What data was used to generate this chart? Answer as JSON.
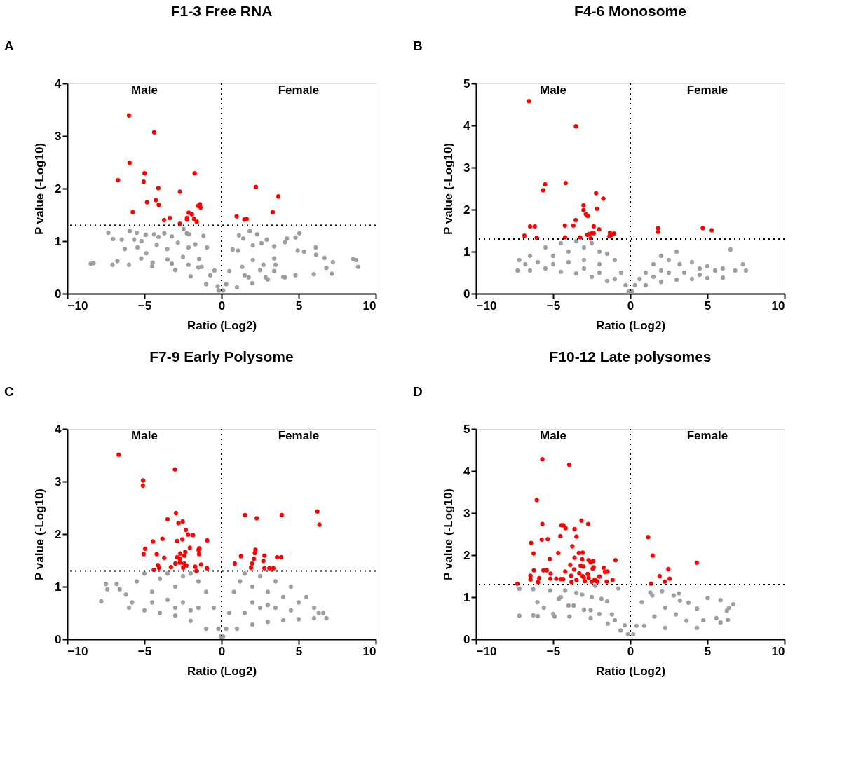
{
  "chart_data": [
    {
      "type": "scatter",
      "title": "F1-3 Free RNA",
      "xlabel": "Ratio (Log2)",
      "ylabel": "P value (-Log10)",
      "annotations": [
        "A",
        "Male",
        "Female"
      ],
      "xlim": [
        -10,
        10
      ],
      "xticks": [
        -10,
        -5,
        0,
        5,
        10
      ],
      "ylim": [
        0,
        4
      ],
      "yticks": [
        0,
        1,
        2,
        3,
        4
      ],
      "grid": false,
      "marker": "circle",
      "ref_lines": [
        {
          "axis": "x",
          "value": 0,
          "color": "#000000",
          "line_style": "dotted"
        },
        {
          "axis": "y",
          "value": 1.3,
          "color": "#000000",
          "line_style": "dotted"
        }
      ],
      "series": [
        {
          "color": "#9d9da3",
          "x": [
            -8.48,
            -8.3,
            -7.34,
            -7.07,
            -7.03,
            -6.75,
            -6.47,
            -6.27,
            -5.95,
            -5.67,
            -5.5,
            -5.45,
            -5.19,
            -4.91,
            -5.21,
            -4.88,
            -4.37,
            -4.09,
            -3.71,
            -3.22,
            -2.46,
            -2.25,
            -2.11,
            -1.7,
            -1.17,
            -0.94,
            -0.46,
            -4.2,
            -3.52,
            -2.83,
            -2.14,
            -1.45,
            -4.47,
            -3.22,
            -2.14,
            -1.29,
            -0.73,
            -0.25,
            -0.18,
            -6.0,
            -4.5,
            -3,
            -2,
            -1,
            -2.5,
            -1.5,
            -3.5,
            0.1,
            0.3,
            0.51,
            0.72,
            1.07,
            1.13,
            1.41,
            1.83,
            2.31,
            2.93,
            2.59,
            3.41,
            4.11,
            4.24,
            4.8,
            5.05,
            4.94,
            5.35,
            6.11,
            6.13,
            6.67,
            7.22,
            6.8,
            7.15,
            8.53,
            8.72,
            8.85,
            5.98,
            4.8,
            3.41,
            2.72,
            2.03,
            1.34,
            1.76,
            2.86,
            4.11,
            2.03,
            3.41,
            1,
            2,
            3,
            4,
            1.5,
            2.5,
            3.5
          ],
          "values": [
            0.57,
            0.58,
            1.16,
            0.55,
            1.04,
            0.62,
            1.03,
            0.85,
            1.19,
            1.03,
            1.16,
            0.88,
            1.0,
            1.12,
            0.67,
            0.77,
            1.13,
            1.08,
            1.15,
            1.09,
            1.23,
            1.15,
            1.13,
            0.94,
            1.1,
            0.88,
            0.44,
            0.93,
            0.85,
            0.97,
            0.88,
            0.66,
            0.59,
            0.57,
            0.55,
            0.51,
            0.35,
            0.14,
            0.06,
            0.55,
            0.52,
            0.45,
            0.33,
            0.18,
            0.7,
            0.5,
            0.65,
            0.06,
            0.18,
            0.43,
            0.84,
            0.82,
            1.11,
            1.05,
            1.19,
            1.13,
            1.03,
            0.96,
            0.9,
            0.98,
            1.05,
            1.07,
            1.15,
            0.82,
            0.8,
            0.88,
            0.74,
            0.68,
            0.6,
            0.49,
            0.38,
            0.66,
            0.64,
            0.51,
            0.37,
            0.35,
            0.43,
            0.55,
            0.64,
            0.51,
            0.31,
            0.31,
            0.31,
            0.92,
            0.67,
            0.12,
            0.2,
            0.27,
            0.32,
            0.35,
            0.45,
            0.55
          ]
        },
        {
          "color": "#ff0000",
          "x": [
            -6.0,
            -4.37,
            -5.96,
            -4.99,
            -6.72,
            -5.05,
            -1.74,
            -4.1,
            -2.7,
            -4.83,
            -4.26,
            -4.07,
            -5.76,
            -1.52,
            -1.4,
            -1.36,
            -2.13,
            -1.92,
            -3.35,
            -3.73,
            -2.24,
            -2.24,
            -1.78,
            -1.61,
            -2.7,
            2.23,
            3.68,
            3.32,
            0.98,
            1.48,
            1.63
          ],
          "values": [
            3.39,
            3.07,
            2.49,
            2.29,
            2.16,
            2.13,
            2.29,
            2.01,
            1.94,
            1.74,
            1.78,
            1.69,
            1.55,
            1.67,
            1.7,
            1.64,
            1.54,
            1.51,
            1.44,
            1.4,
            1.44,
            1.41,
            1.42,
            1.37,
            1.33,
            2.03,
            1.85,
            1.55,
            1.47,
            1.41,
            1.42
          ]
        }
      ]
    },
    {
      "type": "scatter",
      "title": "F4-6 Monosome",
      "xlabel": "Ratio (Log2)",
      "ylabel": "P value (-Log10)",
      "annotations": [
        "B",
        "Male",
        "Female"
      ],
      "xlim": [
        -10,
        10
      ],
      "xticks": [
        -10,
        -5,
        0,
        5,
        10
      ],
      "ylim": [
        0,
        5
      ],
      "yticks": [
        0,
        1,
        2,
        3,
        4,
        5
      ],
      "grid": false,
      "marker": "circle",
      "ref_lines": [
        {
          "axis": "x",
          "value": 0,
          "color": "#000000",
          "line_style": "dotted"
        },
        {
          "axis": "y",
          "value": 1.3,
          "color": "#000000",
          "line_style": "dotted"
        }
      ],
      "series": [
        {
          "color": "#9d9da3",
          "x": [
            -7.3,
            -7.2,
            -6.8,
            -6.5,
            -6,
            -5.5,
            -5,
            -4.5,
            -4,
            -3.5,
            -3,
            -2.5,
            -2,
            -1.5,
            -1,
            -0.6,
            -0.3,
            -0.1,
            -6.5,
            -5.5,
            -4.5,
            -3.5,
            -2.5,
            -1.5,
            -5,
            -4,
            -3,
            -2,
            -3,
            -2,
            -1,
            0.1,
            0.3,
            0.6,
            1,
            1.5,
            2,
            2.5,
            3,
            3.2,
            4,
            4.5,
            5,
            5.5,
            6,
            6.5,
            6.8,
            7.3,
            7.5,
            1,
            2,
            3,
            4,
            5,
            6,
            1.5,
            2.5,
            3.5,
            4.5,
            2
          ],
          "values": [
            0.55,
            0.8,
            0.7,
            0.9,
            0.75,
            1.1,
            0.9,
            1.2,
            1.0,
            1.25,
            1.1,
            1.2,
            1.0,
            0.95,
            0.8,
            0.5,
            0.2,
            0.05,
            0.55,
            0.6,
            0.52,
            0.48,
            0.4,
            0.3,
            0.7,
            0.75,
            0.8,
            0.7,
            0.6,
            0.5,
            0.35,
            0.05,
            0.2,
            0.35,
            0.5,
            0.7,
            0.9,
            0.8,
            1.0,
            0.7,
            0.75,
            0.6,
            0.65,
            0.55,
            0.6,
            1.05,
            0.55,
            0.7,
            0.55,
            0.2,
            0.28,
            0.33,
            0.35,
            0.37,
            0.38,
            0.4,
            0.5,
            0.5,
            0.45,
            0.55
          ]
        },
        {
          "color": "#ff0000",
          "x": [
            -6.57,
            -3.52,
            -5.52,
            -5.65,
            -4.19,
            -2.22,
            -1.75,
            -3.03,
            -3.03,
            -2.16,
            -2.88,
            -2.76,
            -3.54,
            -6.5,
            -6.19,
            -4.24,
            -3.69,
            -2.37,
            -2.02,
            -6.87,
            -6.06,
            -4.23,
            -3.25,
            -2.78,
            -2.67,
            -2.49,
            -2.37,
            -2.56,
            -1.32,
            -1.35,
            -1.25,
            -1.06,
            1.8,
            1.8,
            4.7,
            5.28
          ],
          "values": [
            4.58,
            3.98,
            2.6,
            2.46,
            2.63,
            2.39,
            2.26,
            2.1,
            1.99,
            2.02,
            1.89,
            1.85,
            1.75,
            1.6,
            1.6,
            1.62,
            1.62,
            1.6,
            1.53,
            1.38,
            1.33,
            1.34,
            1.34,
            1.4,
            1.42,
            1.44,
            1.44,
            1.32,
            1.45,
            1.37,
            1.39,
            1.43,
            1.56,
            1.47,
            1.56,
            1.51
          ]
        }
      ]
    },
    {
      "type": "scatter",
      "title": "F7-9 Early Polysome",
      "xlabel": "Ratio (Log2)",
      "ylabel": "P value (-Log10)",
      "annotations": [
        "C",
        "Male",
        "Female"
      ],
      "xlim": [
        -10,
        10
      ],
      "xticks": [
        -10,
        -5,
        0,
        5,
        10
      ],
      "ylim": [
        0,
        4
      ],
      "yticks": [
        0,
        1,
        2,
        3,
        4
      ],
      "grid": false,
      "marker": "circle",
      "ref_lines": [
        {
          "axis": "x",
          "value": 0,
          "color": "#000000",
          "line_style": "dotted"
        },
        {
          "axis": "y",
          "value": 1.3,
          "color": "#000000",
          "line_style": "dotted"
        }
      ],
      "series": [
        {
          "color": "#9d9da3",
          "x": [
            -7.8,
            -7.5,
            -7.4,
            -6.8,
            -6.6,
            -6.2,
            -6.0,
            -5.8,
            -5.5,
            -5,
            -4.5,
            -4,
            -3.5,
            -3,
            -2.5,
            -2,
            -1.5,
            -1,
            -0.5,
            -0.2,
            -0.05,
            -5,
            -4,
            -3,
            -2,
            -1,
            -4.5,
            -3.5,
            -2.5,
            -1.5,
            -3,
            -2,
            0.1,
            0.3,
            0.5,
            0.8,
            1.2,
            1.5,
            2,
            2.5,
            3,
            3.5,
            4,
            4.5,
            5,
            5.5,
            6,
            6.3,
            6.6,
            6.8,
            1,
            2,
            3,
            4,
            5,
            6,
            1.5,
            2.5,
            3.5,
            4.5,
            2,
            3
          ],
          "values": [
            0.72,
            1.05,
            0.95,
            1.05,
            0.95,
            0.85,
            0.6,
            0.7,
            1.1,
            1.25,
            0.9,
            1.15,
            1.25,
            1.0,
            1.2,
            1.25,
            1.1,
            0.9,
            0.6,
            0.2,
            0.05,
            0.55,
            0.5,
            0.45,
            0.35,
            0.2,
            0.7,
            0.75,
            0.7,
            0.6,
            0.6,
            0.55,
            0.05,
            0.2,
            0.5,
            0.9,
            1.1,
            1.25,
            1.0,
            1.2,
            0.9,
            1.1,
            0.8,
            1.0,
            0.7,
            0.8,
            0.6,
            0.5,
            0.5,
            0.4,
            0.2,
            0.28,
            0.33,
            0.36,
            0.38,
            0.4,
            0.5,
            0.6,
            0.6,
            0.55,
            0.7,
            0.65
          ]
        },
        {
          "color": "#ff0000",
          "x": [
            -6.67,
            -3.02,
            -5.09,
            -5.1,
            -2.96,
            -3.5,
            -2.79,
            -2.52,
            -2.32,
            -2.17,
            -1.85,
            -4.45,
            -3.83,
            -2.88,
            -2.54,
            -0.93,
            -4.95,
            -5.05,
            -4.2,
            -3.72,
            -2.05,
            -1.49,
            -1.44,
            -1.46,
            -2.68,
            -2.35,
            -2.41,
            -2.88,
            -2.71,
            -2.7,
            -2.99,
            -4.12,
            -4.05,
            -4.39,
            -3.28,
            -2.42,
            -2.28,
            -2.49,
            -1.71,
            -1.63,
            -1.33,
            -0.94,
            1.52,
            2.28,
            3.9,
            6.21,
            6.35,
            2.2,
            2.16,
            1.26,
            2.1,
            2.78,
            3.6,
            3.86,
            0.86,
            1.98,
            2.71,
            1.91,
            2.78,
            3.1,
            3.36
          ],
          "values": [
            3.51,
            3.23,
            3.02,
            2.92,
            2.4,
            2.28,
            2.21,
            2.24,
            2.08,
            1.99,
            1.98,
            1.86,
            1.91,
            1.87,
            1.9,
            1.88,
            1.72,
            1.62,
            1.62,
            1.55,
            1.74,
            1.7,
            1.73,
            1.62,
            1.63,
            1.66,
            1.59,
            1.56,
            1.53,
            1.46,
            1.44,
            1.41,
            1.36,
            1.32,
            1.37,
            1.44,
            1.4,
            1.36,
            1.38,
            1.3,
            1.42,
            1.35,
            2.36,
            2.3,
            2.36,
            2.43,
            2.18,
            1.7,
            1.64,
            1.58,
            1.53,
            1.59,
            1.56,
            1.56,
            1.44,
            1.44,
            1.49,
            1.36,
            1.35,
            1.35,
            1.35
          ]
        }
      ]
    },
    {
      "type": "scatter",
      "title": "F10-12 Late polysomes",
      "xlabel": "Ratio (Log2)",
      "ylabel": "P value (-Log10)",
      "annotations": [
        "D",
        "Male",
        "Female"
      ],
      "xlim": [
        -10,
        10
      ],
      "xticks": [
        -10,
        -5,
        0,
        5,
        10
      ],
      "ylim": [
        0,
        5
      ],
      "yticks": [
        0,
        1,
        2,
        3,
        4,
        5
      ],
      "grid": false,
      "marker": "circle",
      "ref_lines": [
        {
          "axis": "x",
          "value": 0,
          "color": "#000000",
          "line_style": "dotted"
        },
        {
          "axis": "y",
          "value": 1.3,
          "color": "#000000",
          "line_style": "dotted"
        }
      ],
      "series": [
        {
          "color": "#9d9da3",
          "x": [
            -7.19,
            -7.19,
            -6.29,
            -6.29,
            -6.02,
            -5.6,
            -5.19,
            -4.91,
            -4.63,
            -4.22,
            -3.67,
            -3.12,
            -2.57,
            -2.29,
            -1.87,
            -1.19,
            -0.77,
            -0.36,
            -0.15,
            -3.94,
            -2.57,
            -1.46,
            -0.63,
            0.19,
            0.4,
            0.75,
            1.3,
            1.43,
            2.06,
            2.82,
            3.16,
            3.22,
            3.77,
            4.33,
            5.02,
            5.85,
            6.68,
            6.4,
            6.26,
            5.58,
            6.33,
            5.85,
            4.74,
            2.95,
            2.26,
            1.57,
            3.64,
            0.9,
            2.26,
            4.33,
            -6,
            -5,
            -4,
            -3,
            -2,
            -1,
            -4.5,
            -3.5,
            -2.5,
            -1.5
          ],
          "values": [
            0.56,
            1.2,
            0.57,
            1.19,
            0.88,
            0.75,
            1.16,
            0.54,
            0.96,
            1.16,
            0.8,
            1.06,
            0.69,
            1.27,
            0.96,
            0.59,
            1.21,
            0.33,
            0.12,
            0.54,
            0.5,
            0.37,
            0.21,
            0.12,
            0.32,
            0.88,
            1.11,
            1.04,
            1.14,
            1.04,
            1.09,
            0.92,
            0.87,
            0.73,
            0.98,
            0.93,
            0.83,
            0.75,
            0.68,
            0.5,
            0.46,
            0.4,
            0.45,
            0.59,
            0.75,
            0.54,
            0.44,
            0.32,
            0.27,
            0.27,
            0.55,
            0.6,
            0.8,
            0.7,
            0.6,
            0.45,
            1.0,
            1.1,
            1.0,
            0.9
          ]
        },
        {
          "color": "#ff0000",
          "x": [
            -5.7,
            -3.96,
            -6.06,
            -5.7,
            -4.46,
            -4.34,
            -4.19,
            -3.16,
            -2.73,
            -3.61,
            -3.49,
            -4.53,
            -5.74,
            -5.35,
            -6.43,
            -3.76,
            -6.27,
            -4.67,
            -3.33,
            -3.09,
            -5.22,
            -3.61,
            -3.12,
            -2.7,
            -2.57,
            -2.41,
            -0.96,
            -3.89,
            -3.22,
            -3.05,
            -2.44,
            -2.37,
            -1.73,
            -1.64,
            -1.48,
            -6.25,
            -5.63,
            -5.42,
            -5.16,
            -4.22,
            -3.64,
            -3.31,
            -2.76,
            -3.84,
            -3.09,
            -3.01,
            -2.7,
            -2.0,
            -6.47,
            -5.91,
            -5.18,
            -4.8,
            -4.5,
            -4.35,
            -6.47,
            -3.49,
            -2.95,
            -2.31,
            -2.22,
            -2.14,
            -2.5,
            -1.53,
            -1.15,
            -5.98,
            -3.81,
            -7.32,
            1.15,
            1.45,
            4.31,
            2.47,
            1.9,
            2.55,
            2.24,
            1.35
          ],
          "values": [
            4.28,
            4.15,
            3.31,
            2.74,
            2.71,
            2.71,
            2.64,
            2.82,
            2.74,
            2.62,
            2.44,
            2.45,
            2.37,
            2.38,
            2.29,
            2.21,
            2.04,
            2.05,
            2.05,
            2.06,
            1.91,
            1.94,
            1.9,
            1.88,
            1.83,
            1.86,
            1.88,
            1.77,
            1.75,
            1.73,
            1.68,
            1.71,
            1.7,
            1.6,
            1.61,
            1.64,
            1.64,
            1.64,
            1.56,
            1.61,
            1.66,
            1.57,
            1.55,
            1.51,
            1.5,
            1.47,
            1.46,
            1.49,
            1.51,
            1.45,
            1.44,
            1.44,
            1.43,
            1.43,
            1.42,
            1.41,
            1.38,
            1.42,
            1.39,
            1.37,
            1.37,
            1.37,
            1.41,
            1.36,
            1.36,
            1.32,
            2.43,
            1.99,
            1.82,
            1.67,
            1.5,
            1.44,
            1.37,
            1.32
          ]
        }
      ]
    }
  ]
}
